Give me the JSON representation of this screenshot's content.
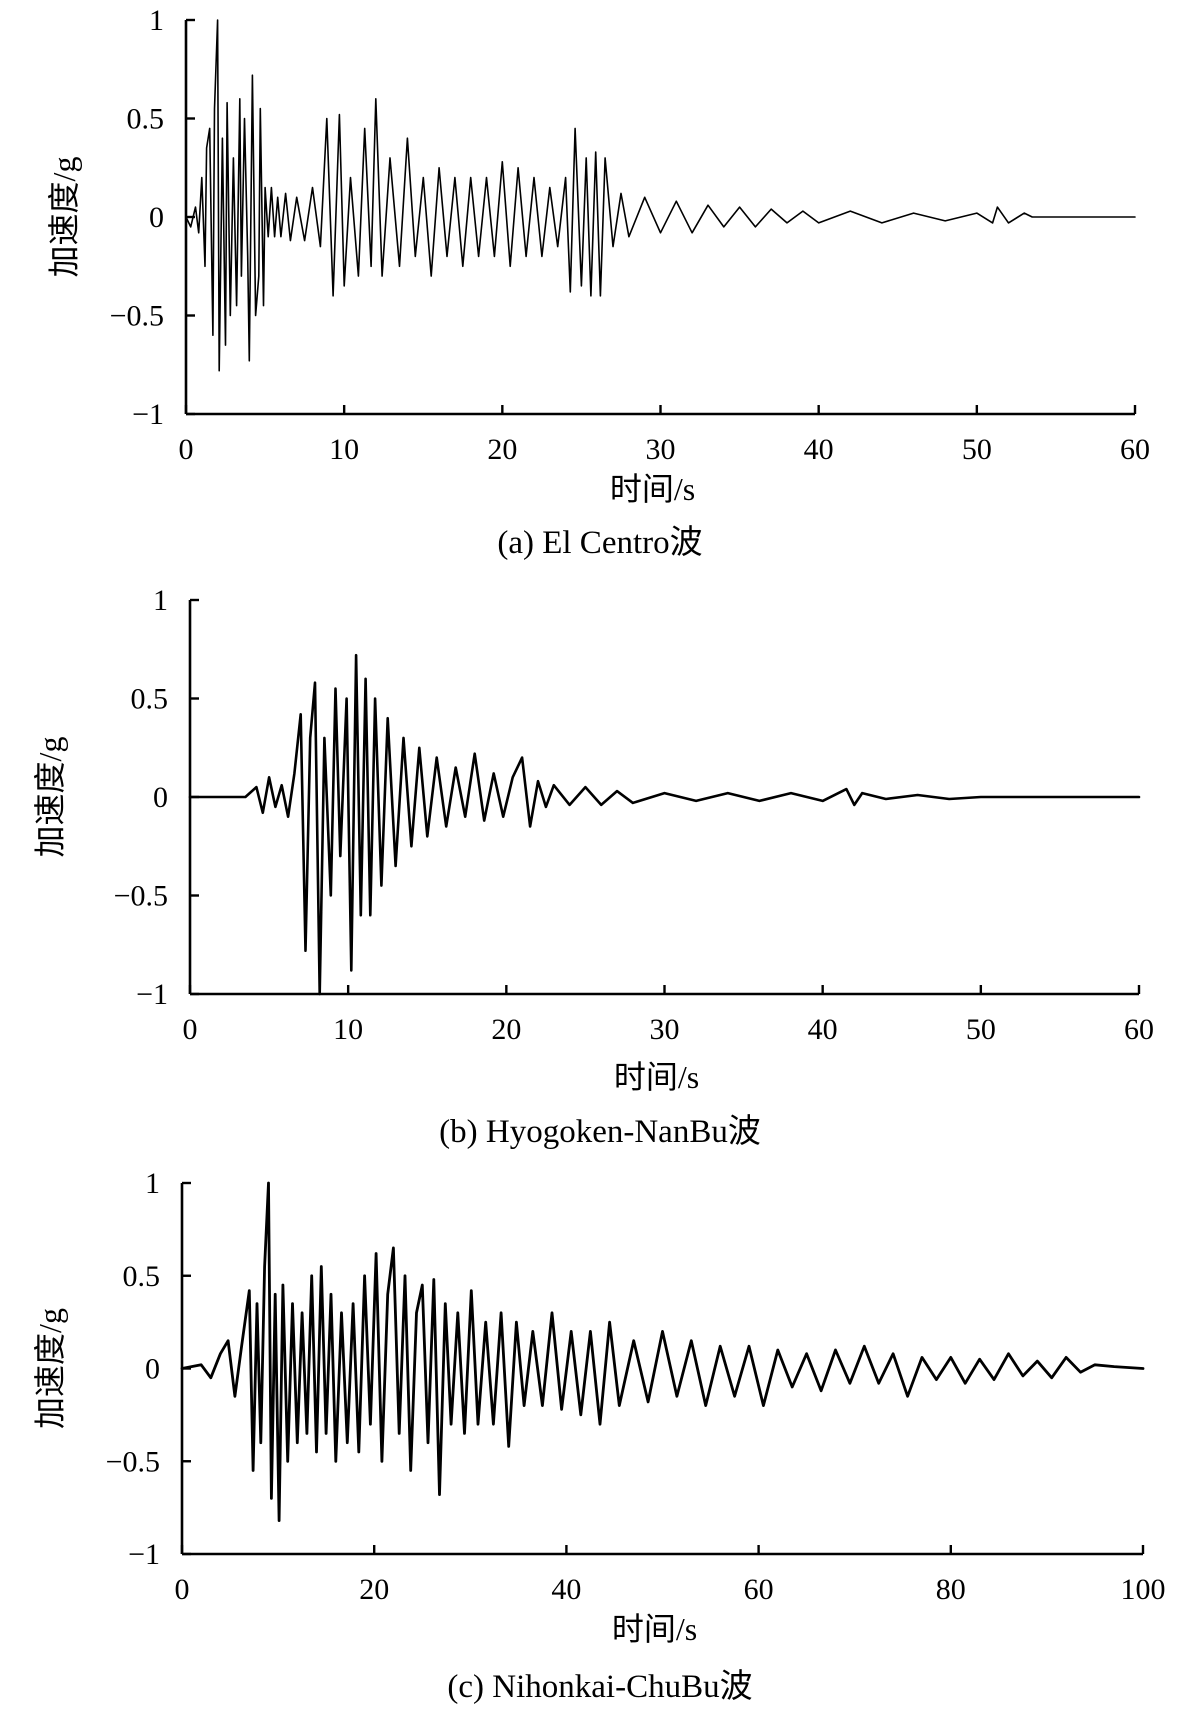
{
  "chart_data": [
    {
      "type": "line",
      "caption": "(a) El Centro波",
      "xlabel": "时间/s",
      "ylabel": "加速度/g",
      "xlim": [
        0,
        60
      ],
      "ylim": [
        -1,
        1
      ],
      "xticks": [
        0,
        10,
        20,
        30,
        40,
        50,
        60
      ],
      "yticks": [
        1,
        0.5,
        0,
        -0.5,
        -1
      ],
      "xtick_labels": [
        "0",
        "10",
        "20",
        "30",
        "40",
        "50",
        "60"
      ],
      "ytick_labels": [
        "1",
        "0.5",
        "0",
        "−0.5",
        "−1"
      ],
      "grid": false,
      "series": [
        {
          "x": [
            0,
            0.3,
            0.6,
            0.8,
            1.0,
            1.2,
            1.3,
            1.5,
            1.7,
            1.8,
            2.0,
            2.1,
            2.3,
            2.5,
            2.6,
            2.8,
            3.0,
            3.2,
            3.4,
            3.5,
            3.7,
            3.9,
            4.0,
            4.2,
            4.4,
            4.6,
            4.7,
            4.9,
            5.0,
            5.2,
            5.4,
            5.6,
            5.8,
            6.0,
            6.3,
            6.6,
            7.0,
            7.5,
            8.0,
            8.5,
            8.9,
            9.3,
            9.7,
            10.0,
            10.4,
            10.9,
            11.3,
            11.7,
            12.0,
            12.4,
            12.9,
            13.5,
            14.0,
            14.5,
            15.0,
            15.5,
            16.0,
            16.5,
            17.0,
            17.5,
            18.0,
            18.5,
            19.0,
            19.5,
            20.0,
            20.5,
            21.0,
            21.5,
            22.0,
            22.5,
            23.0,
            23.5,
            24.0,
            24.3,
            24.6,
            25.0,
            25.3,
            25.6,
            25.9,
            26.2,
            26.5,
            27.0,
            27.5,
            28.0,
            29.0,
            30.0,
            31.0,
            32.0,
            33.0,
            34.0,
            35.0,
            36.0,
            37.0,
            38.0,
            39.0,
            40.0,
            42.0,
            44.0,
            46.0,
            48.0,
            50.0,
            51.0,
            51.3,
            52.0,
            53.0,
            53.5,
            60.0
          ],
          "y": [
            0,
            -0.05,
            0.05,
            -0.08,
            0.2,
            -0.25,
            0.35,
            0.45,
            -0.6,
            0.55,
            1.0,
            -0.78,
            0.4,
            -0.65,
            0.58,
            -0.5,
            0.3,
            -0.45,
            0.6,
            -0.3,
            0.5,
            -0.2,
            -0.73,
            0.72,
            -0.5,
            -0.3,
            0.55,
            -0.45,
            0.15,
            -0.1,
            0.15,
            -0.1,
            0.1,
            -0.1,
            0.12,
            -0.12,
            0.1,
            -0.12,
            0.15,
            -0.15,
            0.5,
            -0.4,
            0.52,
            -0.35,
            0.2,
            -0.3,
            0.45,
            -0.25,
            0.6,
            -0.3,
            0.3,
            -0.25,
            0.4,
            -0.2,
            0.2,
            -0.3,
            0.25,
            -0.2,
            0.2,
            -0.25,
            0.2,
            -0.2,
            0.2,
            -0.2,
            0.28,
            -0.25,
            0.25,
            -0.2,
            0.2,
            -0.2,
            0.15,
            -0.15,
            0.2,
            -0.38,
            0.45,
            -0.35,
            0.3,
            -0.4,
            0.33,
            -0.4,
            0.3,
            -0.15,
            0.12,
            -0.1,
            0.1,
            -0.08,
            0.08,
            -0.08,
            0.06,
            -0.05,
            0.05,
            -0.05,
            0.04,
            -0.03,
            0.03,
            -0.03,
            0.03,
            -0.03,
            0.02,
            -0.02,
            0.02,
            -0.03,
            0.05,
            -0.03,
            0.02,
            0,
            0
          ]
        }
      ]
    },
    {
      "type": "line",
      "caption": "(b) Hyogoken-NanBu波",
      "xlabel": "时间/s",
      "ylabel": "加速度/g",
      "xlim": [
        0,
        60
      ],
      "ylim": [
        -1,
        1
      ],
      "xticks": [
        0,
        10,
        20,
        30,
        40,
        50,
        60
      ],
      "yticks": [
        1,
        0.5,
        0,
        -0.5,
        -1
      ],
      "xtick_labels": [
        "0",
        "10",
        "20",
        "30",
        "40",
        "50",
        "60"
      ],
      "ytick_labels": [
        "1",
        "0.5",
        "0",
        "−0.5",
        "−1"
      ],
      "grid": false,
      "series": [
        {
          "x": [
            0,
            3.5,
            4.2,
            4.6,
            5.0,
            5.4,
            5.8,
            6.2,
            6.6,
            7.0,
            7.3,
            7.6,
            7.9,
            8.2,
            8.5,
            8.9,
            9.2,
            9.5,
            9.9,
            10.2,
            10.5,
            10.8,
            11.1,
            11.4,
            11.7,
            12.1,
            12.5,
            13.0,
            13.5,
            14.0,
            14.5,
            15.0,
            15.6,
            16.2,
            16.8,
            17.4,
            18.0,
            18.6,
            19.2,
            19.8,
            20.4,
            21.0,
            21.5,
            22.0,
            22.5,
            23.0,
            24.0,
            25.0,
            26.0,
            27.0,
            28.0,
            30.0,
            32.0,
            34.0,
            36.0,
            38.0,
            40.0,
            41.5,
            42.0,
            42.5,
            44.0,
            46.0,
            48.0,
            50.0,
            60.0
          ],
          "y": [
            0,
            0,
            0.05,
            -0.08,
            0.1,
            -0.05,
            0.06,
            -0.1,
            0.12,
            0.42,
            -0.78,
            0.3,
            0.58,
            -1.0,
            0.3,
            -0.5,
            0.55,
            -0.3,
            0.5,
            -0.88,
            0.72,
            -0.6,
            0.6,
            -0.6,
            0.5,
            -0.45,
            0.4,
            -0.35,
            0.3,
            -0.25,
            0.25,
            -0.2,
            0.2,
            -0.15,
            0.15,
            -0.1,
            0.22,
            -0.12,
            0.12,
            -0.1,
            0.1,
            0.2,
            -0.15,
            0.08,
            -0.05,
            0.06,
            -0.04,
            0.05,
            -0.04,
            0.03,
            -0.03,
            0.02,
            -0.02,
            0.02,
            -0.02,
            0.02,
            -0.02,
            0.04,
            -0.04,
            0.02,
            -0.01,
            0.01,
            -0.01,
            0,
            0
          ]
        }
      ]
    },
    {
      "type": "line",
      "caption": "(c) Nihonkai-ChuBu波",
      "xlabel": "时间/s",
      "ylabel": "加速度/g",
      "xlim": [
        0,
        100
      ],
      "ylim": [
        -1,
        1
      ],
      "xticks": [
        0,
        20,
        40,
        60,
        80,
        100
      ],
      "yticks": [
        1,
        0.5,
        0,
        -0.5,
        -1
      ],
      "xtick_labels": [
        "0",
        "20",
        "40",
        "60",
        "80",
        "100"
      ],
      "ytick_labels": [
        "1",
        "0.5",
        "0",
        "−0.5",
        "−1"
      ],
      "grid": false,
      "series": [
        {
          "x": [
            0,
            2.0,
            3.0,
            4.0,
            4.8,
            5.5,
            6.2,
            7.0,
            7.4,
            7.8,
            8.2,
            8.6,
            9.0,
            9.3,
            9.7,
            10.1,
            10.5,
            11.0,
            11.5,
            12.0,
            12.5,
            13.0,
            13.5,
            14.0,
            14.5,
            15.0,
            15.5,
            16.0,
            16.6,
            17.2,
            17.8,
            18.4,
            19.0,
            19.6,
            20.2,
            20.8,
            21.4,
            22.0,
            22.6,
            23.2,
            23.8,
            24.4,
            25.0,
            25.6,
            26.2,
            26.8,
            27.4,
            28.0,
            28.7,
            29.4,
            30.1,
            30.8,
            31.6,
            32.4,
            33.2,
            34.0,
            34.8,
            35.6,
            36.5,
            37.5,
            38.5,
            39.5,
            40.5,
            41.5,
            42.5,
            43.5,
            44.5,
            45.5,
            47.0,
            48.5,
            50.0,
            51.5,
            53.0,
            54.5,
            56.0,
            57.5,
            59.0,
            60.5,
            62.0,
            63.5,
            65.0,
            66.5,
            68.0,
            69.5,
            71.0,
            72.5,
            74.0,
            75.5,
            77.0,
            78.5,
            80.0,
            81.5,
            83.0,
            84.5,
            86.0,
            87.5,
            89.0,
            90.5,
            92.0,
            93.5,
            95.0,
            97.0,
            100.0
          ],
          "y": [
            0,
            0.02,
            -0.05,
            0.08,
            0.15,
            -0.15,
            0.12,
            0.42,
            -0.55,
            0.35,
            -0.4,
            0.55,
            1.0,
            -0.7,
            0.4,
            -0.82,
            0.45,
            -0.5,
            0.35,
            -0.4,
            0.3,
            -0.35,
            0.5,
            -0.45,
            0.55,
            -0.35,
            0.4,
            -0.5,
            0.3,
            -0.4,
            0.35,
            -0.45,
            0.5,
            -0.3,
            0.62,
            -0.5,
            0.4,
            0.65,
            -0.35,
            0.5,
            -0.55,
            0.3,
            0.45,
            -0.4,
            0.48,
            -0.68,
            0.35,
            -0.3,
            0.3,
            -0.35,
            0.42,
            -0.3,
            0.25,
            -0.3,
            0.3,
            -0.42,
            0.25,
            -0.2,
            0.2,
            -0.2,
            0.3,
            -0.22,
            0.2,
            -0.25,
            0.2,
            -0.3,
            0.25,
            -0.2,
            0.15,
            -0.18,
            0.2,
            -0.15,
            0.15,
            -0.2,
            0.12,
            -0.15,
            0.12,
            -0.2,
            0.1,
            -0.1,
            0.08,
            -0.12,
            0.1,
            -0.08,
            0.12,
            -0.08,
            0.08,
            -0.15,
            0.06,
            -0.06,
            0.06,
            -0.08,
            0.05,
            -0.06,
            0.08,
            -0.04,
            0.04,
            -0.05,
            0.06,
            -0.02,
            0.02,
            0.01,
            0
          ]
        }
      ]
    }
  ]
}
